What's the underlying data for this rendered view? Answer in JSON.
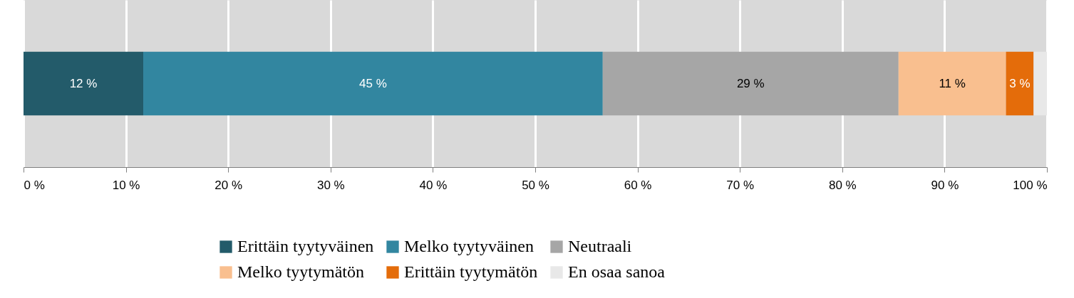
{
  "chart_data": {
    "type": "bar",
    "orientation": "horizontal",
    "stacked": true,
    "categories": [
      null
    ],
    "series": [
      {
        "name": "Erittäin tyytyväinen",
        "color": "#235b6a",
        "values": [
          11.7
        ],
        "value_labels": [
          "12 %"
        ]
      },
      {
        "name": "Melko tyytyväinen",
        "color": "#3286a0",
        "values": [
          44.9
        ],
        "value_labels": [
          "45 %"
        ]
      },
      {
        "name": "Neutraali",
        "color": "#a6a6a6",
        "values": [
          28.9
        ],
        "value_labels": [
          "29 %"
        ]
      },
      {
        "name": "Melko tyytymätön",
        "color": "#f9bf8f",
        "values": [
          10.5
        ],
        "value_labels": [
          "11 %"
        ]
      },
      {
        "name": "Erittäin tyytymätön",
        "color": "#e46c0a",
        "values": [
          2.7
        ],
        "value_labels": [
          "3 %"
        ]
      },
      {
        "name": "En osaa sanoa",
        "color": "#e8e8e8",
        "values": [
          1.3
        ],
        "value_labels": [
          null
        ]
      }
    ],
    "xlim": [
      0,
      100
    ],
    "xticks": [
      {
        "value": 0,
        "label": "0 %"
      },
      {
        "value": 10,
        "label": "10 %"
      },
      {
        "value": 20,
        "label": "20 %"
      },
      {
        "value": 30,
        "label": "30 %"
      },
      {
        "value": 40,
        "label": "40 %"
      },
      {
        "value": 50,
        "label": "50 %"
      },
      {
        "value": 60,
        "label": "60 %"
      },
      {
        "value": 70,
        "label": "70 %"
      },
      {
        "value": 80,
        "label": "80 %"
      },
      {
        "value": 90,
        "label": "90 %"
      },
      {
        "value": 100,
        "label": "100 %"
      }
    ],
    "grid": "x",
    "legend": "bottom"
  }
}
